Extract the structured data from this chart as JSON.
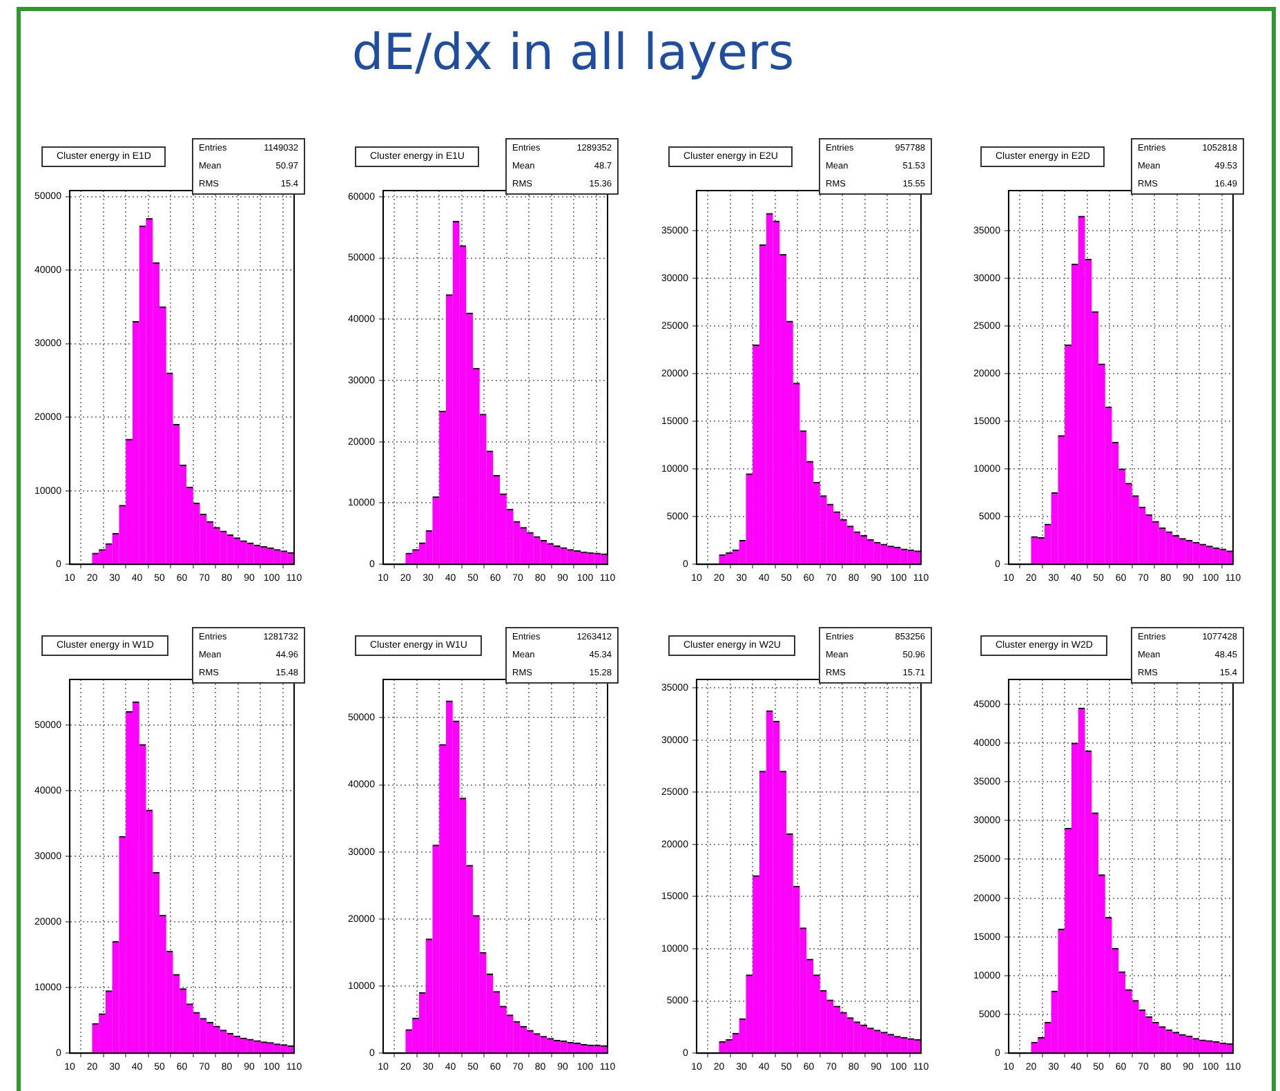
{
  "chart_data": [
    {
      "type": "other",
      "title": "dE/dx in all layers"
    },
    {
      "type": "histogram",
      "title": "Cluster energy in E1D",
      "annotations": [
        "Entries 1149032",
        "Mean 50.97",
        "RMS 15.4"
      ],
      "color": "#ff00ff",
      "grid": true,
      "xlim": [
        10,
        110
      ],
      "xticks": [
        10,
        20,
        30,
        40,
        50,
        60,
        70,
        80,
        90,
        100,
        110
      ],
      "ylim": [
        0,
        50800
      ],
      "yticks": [
        0,
        10000,
        20000,
        30000,
        40000,
        50000
      ],
      "bins": [
        20,
        23,
        26,
        29,
        32,
        35,
        38,
        41,
        44,
        47,
        50,
        53,
        56,
        59,
        62,
        65,
        68,
        71,
        74,
        77,
        80,
        83,
        86,
        89,
        92,
        95,
        98,
        101,
        104,
        107,
        110
      ],
      "values": [
        1500,
        2000,
        2800,
        4200,
        8000,
        17000,
        33000,
        46000,
        47000,
        41000,
        35000,
        26000,
        19000,
        13500,
        10500,
        8300,
        6800,
        5800,
        5000,
        4500,
        4000,
        3600,
        3200,
        2900,
        2600,
        2400,
        2200,
        2000,
        1800,
        1600
      ]
    },
    {
      "type": "histogram",
      "title": "Cluster energy in E1U",
      "annotations": [
        "Entries 1289352",
        "Mean 48.7",
        "RMS 15.36"
      ],
      "color": "#ff00ff",
      "grid": true,
      "xlim": [
        10,
        110
      ],
      "xticks": [
        10,
        20,
        30,
        40,
        50,
        60,
        70,
        80,
        90,
        100,
        110
      ],
      "ylim": [
        0,
        61000
      ],
      "yticks": [
        0,
        10000,
        20000,
        30000,
        40000,
        50000,
        60000
      ],
      "bins": [
        20,
        23,
        26,
        29,
        32,
        35,
        38,
        41,
        44,
        47,
        50,
        53,
        56,
        59,
        62,
        65,
        68,
        71,
        74,
        77,
        80,
        83,
        86,
        89,
        92,
        95,
        98,
        101,
        104,
        107,
        110
      ],
      "values": [
        1800,
        2400,
        3500,
        5500,
        11000,
        25000,
        44000,
        56000,
        52000,
        41000,
        32000,
        24500,
        18500,
        14500,
        11500,
        9000,
        7000,
        6000,
        5200,
        4500,
        3900,
        3400,
        3000,
        2700,
        2400,
        2200,
        2000,
        1900,
        1800,
        1700
      ]
    },
    {
      "type": "histogram",
      "title": "Cluster energy in E2U",
      "annotations": [
        "Entries 957788",
        "Mean 51.53",
        "RMS 15.55"
      ],
      "color": "#ff00ff",
      "grid": true,
      "xlim": [
        10,
        110
      ],
      "xticks": [
        10,
        20,
        30,
        40,
        50,
        60,
        70,
        80,
        90,
        100,
        110
      ],
      "ylim": [
        0,
        39200
      ],
      "yticks": [
        0,
        5000,
        10000,
        15000,
        20000,
        25000,
        30000,
        35000
      ],
      "bins": [
        20,
        23,
        26,
        29,
        32,
        35,
        38,
        41,
        44,
        47,
        50,
        53,
        56,
        59,
        62,
        65,
        68,
        71,
        74,
        77,
        80,
        83,
        86,
        89,
        92,
        95,
        98,
        101,
        104,
        107,
        110
      ],
      "values": [
        1000,
        1200,
        1500,
        2500,
        9500,
        23000,
        33500,
        36800,
        36000,
        32500,
        25500,
        19000,
        14000,
        10800,
        8600,
        7200,
        6300,
        5500,
        4700,
        4000,
        3400,
        3000,
        2600,
        2300,
        2100,
        1900,
        1800,
        1600,
        1500,
        1400
      ]
    },
    {
      "type": "histogram",
      "title": "Cluster energy in E2D",
      "annotations": [
        "Entries 1052818",
        "Mean 49.53",
        "RMS 16.49"
      ],
      "color": "#ff00ff",
      "grid": true,
      "xlim": [
        10,
        110
      ],
      "xticks": [
        10,
        20,
        30,
        40,
        50,
        60,
        70,
        80,
        90,
        100,
        110
      ],
      "ylim": [
        0,
        39200
      ],
      "yticks": [
        0,
        5000,
        10000,
        15000,
        20000,
        25000,
        30000,
        35000
      ],
      "bins": [
        20,
        23,
        26,
        29,
        32,
        35,
        38,
        41,
        44,
        47,
        50,
        53,
        56,
        59,
        62,
        65,
        68,
        71,
        74,
        77,
        80,
        83,
        86,
        89,
        92,
        95,
        98,
        101,
        104,
        107,
        110
      ],
      "values": [
        2900,
        2800,
        4200,
        7500,
        13500,
        23000,
        31500,
        36500,
        32000,
        26500,
        21000,
        16500,
        12800,
        10000,
        8500,
        7200,
        6000,
        5200,
        4500,
        3800,
        3400,
        3000,
        2700,
        2500,
        2300,
        2100,
        1900,
        1700,
        1600,
        1400
      ]
    },
    {
      "type": "histogram",
      "title": "Cluster energy in W1D",
      "annotations": [
        "Entries 1281732",
        "Mean 44.96",
        "RMS 15.48"
      ],
      "color": "#ff00ff",
      "grid": true,
      "xlim": [
        10,
        110
      ],
      "xticks": [
        10,
        20,
        30,
        40,
        50,
        60,
        70,
        80,
        90,
        100,
        110
      ],
      "ylim": [
        0,
        56900
      ],
      "yticks": [
        0,
        10000,
        20000,
        30000,
        40000,
        50000
      ],
      "bins": [
        20,
        23,
        26,
        29,
        32,
        35,
        38,
        41,
        44,
        47,
        50,
        53,
        56,
        59,
        62,
        65,
        68,
        71,
        74,
        77,
        80,
        83,
        86,
        89,
        92,
        95,
        98,
        101,
        104,
        107,
        110
      ],
      "values": [
        4500,
        6000,
        9500,
        17000,
        33000,
        52000,
        53500,
        47000,
        37000,
        27500,
        21000,
        15500,
        12000,
        9800,
        7500,
        6200,
        5300,
        4700,
        4100,
        3500,
        3000,
        2600,
        2300,
        2100,
        1900,
        1700,
        1600,
        1400,
        1300,
        1100
      ]
    },
    {
      "type": "histogram",
      "title": "Cluster energy in W1U",
      "annotations": [
        "Entries 1263412",
        "Mean 45.34",
        "RMS 15.28"
      ],
      "color": "#ff00ff",
      "grid": true,
      "xlim": [
        10,
        110
      ],
      "xticks": [
        10,
        20,
        30,
        40,
        50,
        60,
        70,
        80,
        90,
        100,
        110
      ],
      "ylim": [
        0,
        55700
      ],
      "yticks": [
        0,
        10000,
        20000,
        30000,
        40000,
        50000
      ],
      "bins": [
        20,
        23,
        26,
        29,
        32,
        35,
        38,
        41,
        44,
        47,
        50,
        53,
        56,
        59,
        62,
        65,
        68,
        71,
        74,
        77,
        80,
        83,
        86,
        89,
        92,
        95,
        98,
        101,
        104,
        107,
        110
      ],
      "values": [
        3500,
        5200,
        9000,
        17000,
        31000,
        46000,
        52500,
        49500,
        38000,
        28000,
        20500,
        15000,
        11800,
        9200,
        7000,
        5700,
        4700,
        4000,
        3400,
        2900,
        2500,
        2200,
        1900,
        1800,
        1600,
        1500,
        1300,
        1200,
        1200,
        1100
      ]
    },
    {
      "type": "histogram",
      "title": "Cluster energy in W2U",
      "annotations": [
        "Entries 853256",
        "Mean 50.96",
        "RMS 15.71"
      ],
      "color": "#ff00ff",
      "grid": true,
      "xlim": [
        10,
        110
      ],
      "xticks": [
        10,
        20,
        30,
        40,
        50,
        60,
        70,
        80,
        90,
        100,
        110
      ],
      "ylim": [
        0,
        35800
      ],
      "yticks": [
        0,
        5000,
        10000,
        15000,
        20000,
        25000,
        30000,
        35000
      ],
      "bins": [
        20,
        23,
        26,
        29,
        32,
        35,
        38,
        41,
        44,
        47,
        50,
        53,
        56,
        59,
        62,
        65,
        68,
        71,
        74,
        77,
        80,
        83,
        86,
        89,
        92,
        95,
        98,
        101,
        104,
        107,
        110
      ],
      "values": [
        1100,
        1300,
        1900,
        3300,
        7500,
        17000,
        27000,
        32800,
        31800,
        27000,
        21000,
        16000,
        12000,
        9000,
        7500,
        6000,
        5100,
        4500,
        3900,
        3400,
        3000,
        2700,
        2400,
        2200,
        2000,
        1800,
        1600,
        1500,
        1400,
        1300
      ]
    },
    {
      "type": "histogram",
      "title": "Cluster energy in W2D",
      "annotations": [
        "Entries 1077428",
        "Mean 48.45",
        "RMS 15.4"
      ],
      "color": "#ff00ff",
      "grid": true,
      "xlim": [
        10,
        110
      ],
      "xticks": [
        10,
        20,
        30,
        40,
        50,
        60,
        70,
        80,
        90,
        100,
        110
      ],
      "ylim": [
        0,
        48200
      ],
      "yticks": [
        0,
        5000,
        10000,
        15000,
        20000,
        25000,
        30000,
        35000,
        40000,
        45000
      ],
      "bins": [
        20,
        23,
        26,
        29,
        32,
        35,
        38,
        41,
        44,
        47,
        50,
        53,
        56,
        59,
        62,
        65,
        68,
        71,
        74,
        77,
        80,
        83,
        86,
        89,
        92,
        95,
        98,
        101,
        104,
        107,
        110
      ],
      "values": [
        1400,
        2000,
        4000,
        8000,
        16000,
        29000,
        40000,
        44500,
        39000,
        31000,
        23000,
        17500,
        13500,
        10500,
        8200,
        6800,
        5600,
        4700,
        4000,
        3400,
        3000,
        2700,
        2400,
        2200,
        1900,
        1700,
        1600,
        1500,
        1300,
        1200
      ]
    }
  ]
}
